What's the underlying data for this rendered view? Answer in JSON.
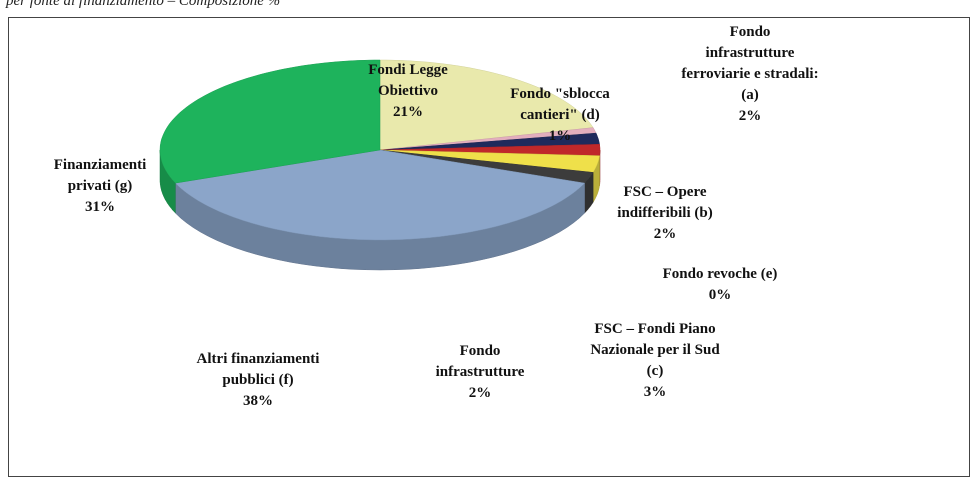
{
  "chart_data": {
    "type": "pie3d",
    "title": "per fonte di finanziamento – Composizione %",
    "categories": [
      "Fondi Legge\nObiettivo",
      "Fondo \"sblocca\ncantieri\" (d)",
      "Fondo\ninfrastrutture\nferroviarie e stradali:\n(a)",
      "FSC – Opere\nindifferibili (b)",
      "Fondo revoche (e)",
      "FSC – Fondi Piano\nNazionale per il Sud\n(c)",
      "Fondo\ninfrastrutture",
      "Altri finanziamenti\npubblici (f)",
      "Finanziamenti\nprivati (g)"
    ],
    "values": [
      21,
      1,
      2,
      2,
      0,
      3,
      2,
      38,
      31
    ],
    "value_labels": [
      "21%",
      "1%",
      "2%",
      "2%",
      "0%",
      "3%",
      "2%",
      "38%",
      "31%"
    ],
    "colors": [
      "#e9e9ac",
      "#e3aebd",
      "#1f2a5c",
      "#c0282a",
      "#6a8a3a",
      "#efe04a",
      "#3c3c3c",
      "#8ba5c9",
      "#1eb35c"
    ]
  }
}
